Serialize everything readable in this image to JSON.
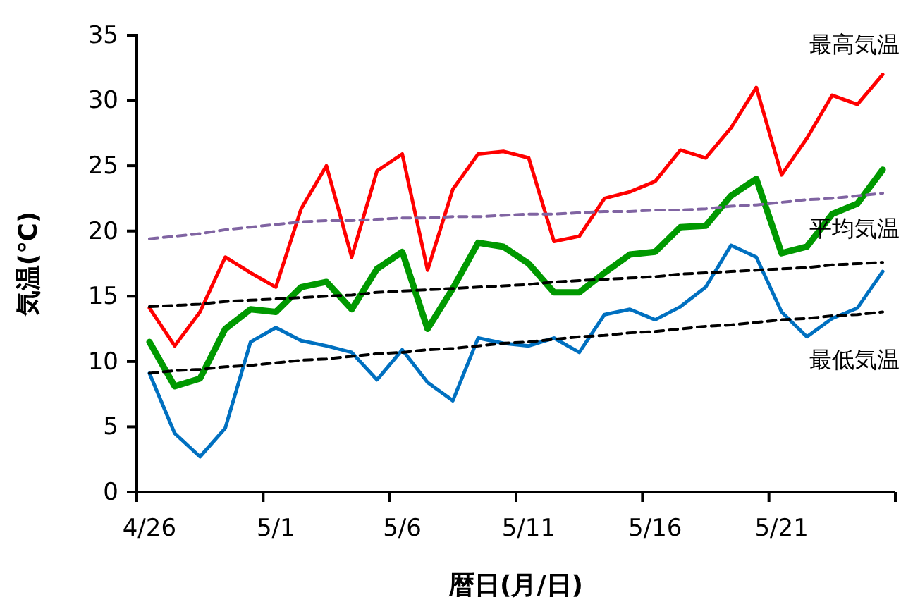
{
  "chart_data": {
    "type": "line",
    "xlabel": "暦日(月/日)",
    "ylabel": "気温(℃)",
    "categories": [
      "4/26",
      null,
      null,
      null,
      null,
      "5/1",
      null,
      null,
      null,
      null,
      "5/6",
      null,
      null,
      null,
      null,
      "5/11",
      null,
      null,
      null,
      null,
      "5/16",
      null,
      null,
      null,
      null,
      "5/21",
      null,
      null,
      null,
      null
    ],
    "ylim": [
      0,
      35
    ],
    "yticks": [
      0,
      5,
      10,
      15,
      20,
      25,
      30,
      35
    ],
    "grid": false,
    "legend": false,
    "line_style": "solid",
    "marker": "none",
    "series": [
      {
        "name": "最高気温",
        "color": "#ff0000",
        "values": [
          14.1,
          11.2,
          13.8,
          18.0,
          16.8,
          15.7,
          21.7,
          25.0,
          18.0,
          24.6,
          25.9,
          17.0,
          23.2,
          25.9,
          26.1,
          25.6,
          19.2,
          19.6,
          22.5,
          23.0,
          23.8,
          26.2,
          25.6,
          27.9,
          31.0,
          24.3,
          27.1,
          30.4,
          29.7,
          32.0
        ]
      },
      {
        "name": "平均気温",
        "color": "#009900",
        "values": [
          11.5,
          8.1,
          8.7,
          12.5,
          14.0,
          13.8,
          15.7,
          16.1,
          14.0,
          17.1,
          18.4,
          12.5,
          15.6,
          19.1,
          18.8,
          17.5,
          15.3,
          15.3,
          16.8,
          18.2,
          18.4,
          20.3,
          20.4,
          22.7,
          24.0,
          18.3,
          18.8,
          21.3,
          22.1,
          24.7
        ]
      },
      {
        "name": "最低気温",
        "color": "#0070c0",
        "values": [
          9.1,
          4.5,
          2.7,
          4.9,
          11.5,
          12.6,
          11.6,
          11.2,
          10.7,
          8.6,
          10.9,
          8.4,
          7.0,
          11.8,
          11.4,
          11.2,
          11.8,
          10.7,
          13.6,
          14.0,
          13.2,
          14.2,
          15.7,
          18.9,
          18.0,
          13.8,
          11.9,
          13.3,
          14.1,
          16.9
        ]
      },
      {
        "type": "line",
        "color": "#8064a2",
        "line_style": "dashed",
        "values": [
          19.4,
          19.6,
          19.8,
          20.1,
          20.3,
          20.5,
          20.7,
          20.8,
          20.8,
          20.9,
          21.0,
          21.0,
          21.1,
          21.1,
          21.2,
          21.3,
          21.3,
          21.4,
          21.5,
          21.5,
          21.6,
          21.6,
          21.7,
          21.9,
          22.0,
          22.2,
          22.4,
          22.5,
          22.7,
          22.9
        ]
      },
      {
        "type": "line",
        "color": "#000000",
        "line_style": "dashed",
        "values": [
          14.2,
          14.3,
          14.4,
          14.6,
          14.7,
          14.8,
          14.9,
          15.0,
          15.1,
          15.3,
          15.4,
          15.5,
          15.6,
          15.7,
          15.8,
          15.9,
          16.1,
          16.2,
          16.3,
          16.4,
          16.5,
          16.7,
          16.8,
          16.9,
          17.0,
          17.1,
          17.2,
          17.4,
          17.5,
          17.6
        ]
      },
      {
        "type": "line",
        "color": "#000000",
        "line_style": "dashed",
        "values": [
          9.1,
          9.3,
          9.4,
          9.6,
          9.7,
          9.9,
          10.1,
          10.2,
          10.4,
          10.6,
          10.7,
          10.9,
          11.0,
          11.2,
          11.4,
          11.5,
          11.7,
          11.9,
          12.0,
          12.2,
          12.3,
          12.5,
          12.7,
          12.8,
          13.0,
          13.2,
          13.3,
          13.5,
          13.6,
          13.8
        ]
      }
    ]
  }
}
